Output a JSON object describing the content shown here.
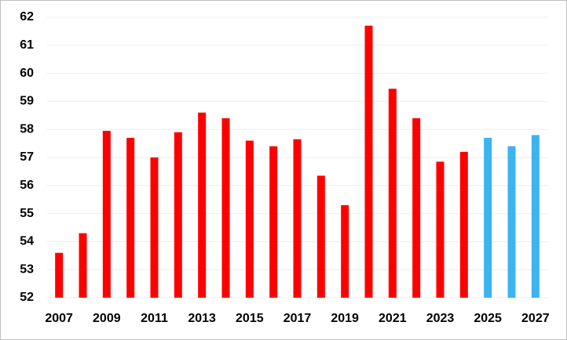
{
  "chart_data": {
    "type": "bar",
    "categories": [
      "2007",
      null,
      "2009",
      null,
      "2011",
      null,
      "2013",
      null,
      "2015",
      null,
      "2017",
      null,
      "2019",
      null,
      "2021",
      null,
      "2023",
      null,
      "2025",
      null,
      "2027"
    ],
    "values": [
      53.6,
      54.3,
      57.95,
      57.7,
      57.0,
      57.9,
      58.6,
      58.4,
      57.6,
      57.4,
      57.65,
      56.35,
      55.3,
      61.7,
      59.45,
      58.4,
      56.85,
      57.2,
      57.7,
      57.4,
      57.8
    ],
    "colors": [
      "#ff0000",
      "#ff0000",
      "#ff0000",
      "#ff0000",
      "#ff0000",
      "#ff0000",
      "#ff0000",
      "#ff0000",
      "#ff0000",
      "#ff0000",
      "#ff0000",
      "#ff0000",
      "#ff0000",
      "#ff0000",
      "#ff0000",
      "#ff0000",
      "#ff0000",
      "#ff0000",
      "#3bb4f0",
      "#3bb4f0",
      "#3bb4f0"
    ],
    "ylim": [
      52,
      62
    ],
    "yticks": [
      52,
      53,
      54,
      55,
      56,
      57,
      58,
      59,
      60,
      61,
      62
    ],
    "grid": true
  }
}
